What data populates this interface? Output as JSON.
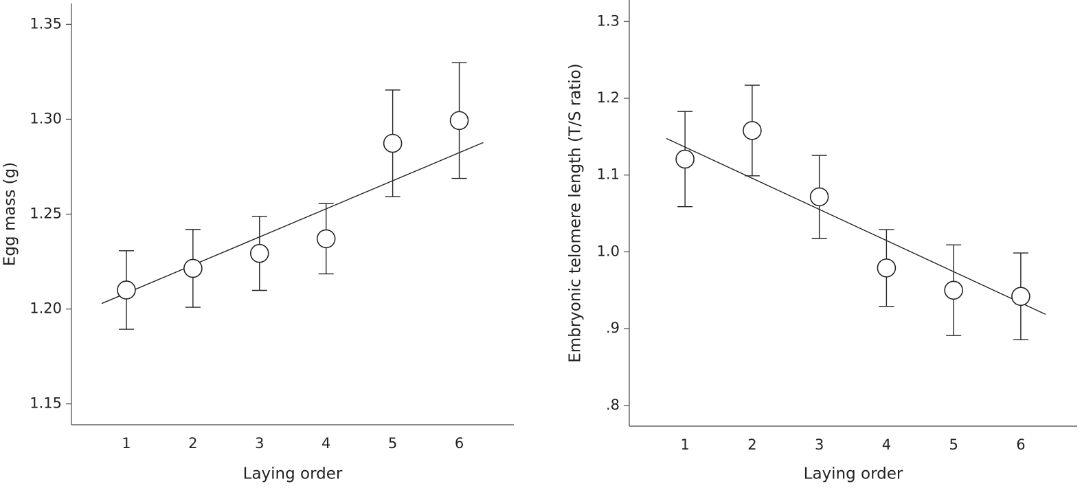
{
  "chart_data": [
    {
      "type": "scatter",
      "x_label": "Laying order",
      "y_label": "Egg mass (g)",
      "x": [
        1,
        2,
        3,
        4,
        5,
        6
      ],
      "values": [
        1.21,
        1.2214,
        1.2293,
        1.237,
        1.2873,
        1.2993
      ],
      "errors": [
        0.0207,
        0.0205,
        0.0195,
        0.0185,
        0.0281,
        0.0305
      ],
      "fit_line": {
        "x": [
          0.63,
          6.36
        ],
        "y": [
          1.2029,
          1.2877
        ]
      },
      "color": "#222222",
      "xlim": [
        0.175,
        6.82
      ],
      "ylim": [
        1.139,
        1.361
      ],
      "xticks": [
        1,
        2,
        3,
        4,
        5,
        6
      ],
      "yticks": [
        {
          "value": 1.15,
          "label": "1.15"
        },
        {
          "value": 1.2,
          "label": "1.20"
        },
        {
          "value": 1.25,
          "label": "1.25"
        },
        {
          "value": 1.3,
          "label": "1.30"
        },
        1.35
      ]
    },
    {
      "type": "scatter",
      "x_label": "Laying order",
      "y_label": "Embryonic telomere length (T/S ratio)",
      "x": [
        1,
        2,
        3,
        4,
        5,
        6
      ],
      "values": [
        1.1208,
        1.158,
        1.0716,
        0.979,
        0.95,
        0.942
      ],
      "errors": [
        0.062,
        0.059,
        0.054,
        0.05,
        0.059,
        0.0565
      ],
      "fit_line": {
        "x": [
          0.724,
          6.37
        ],
        "y": [
          1.1476,
          0.9186
        ]
      },
      "color": "#222222",
      "xlim": [
        0.17,
        6.84
      ],
      "ylim": [
        0.773,
        1.328
      ],
      "xticks": [
        1,
        2,
        3,
        4,
        5,
        6
      ],
      "yticks": [
        {
          "value": 0.8,
          "label": ".8"
        },
        {
          "value": 0.9,
          "label": ".9"
        },
        {
          "value": 1.0,
          "label": "1.0"
        },
        1.1,
        1.2,
        1.3
      ]
    }
  ]
}
